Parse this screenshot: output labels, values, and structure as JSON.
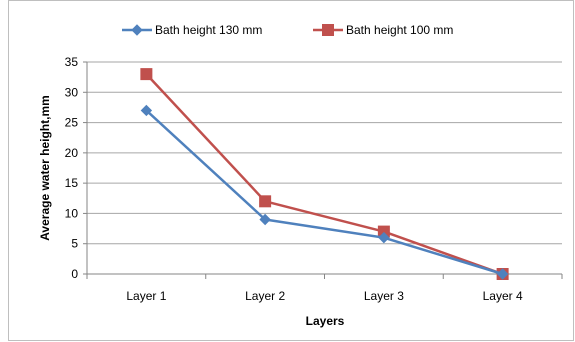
{
  "chart_data": {
    "type": "line",
    "title": "",
    "xlabel": "Layers",
    "ylabel": "Average water height,mm",
    "categories": [
      "Layer 1",
      "Layer 2",
      "Layer 3",
      "Layer 4"
    ],
    "ylim": [
      0,
      35
    ],
    "yticks": [
      "0",
      "5",
      "10",
      "15",
      "20",
      "25",
      "30",
      "35"
    ],
    "grid": true,
    "legend_position": "top",
    "series": [
      {
        "name": "Bath height 130 mm",
        "values": [
          27,
          9,
          6,
          0
        ],
        "color": "#4f81bd",
        "marker": "diamond"
      },
      {
        "name": "Bath height 100 mm",
        "values": [
          33,
          12,
          7,
          0
        ],
        "color": "#c0504d",
        "marker": "square"
      }
    ]
  }
}
